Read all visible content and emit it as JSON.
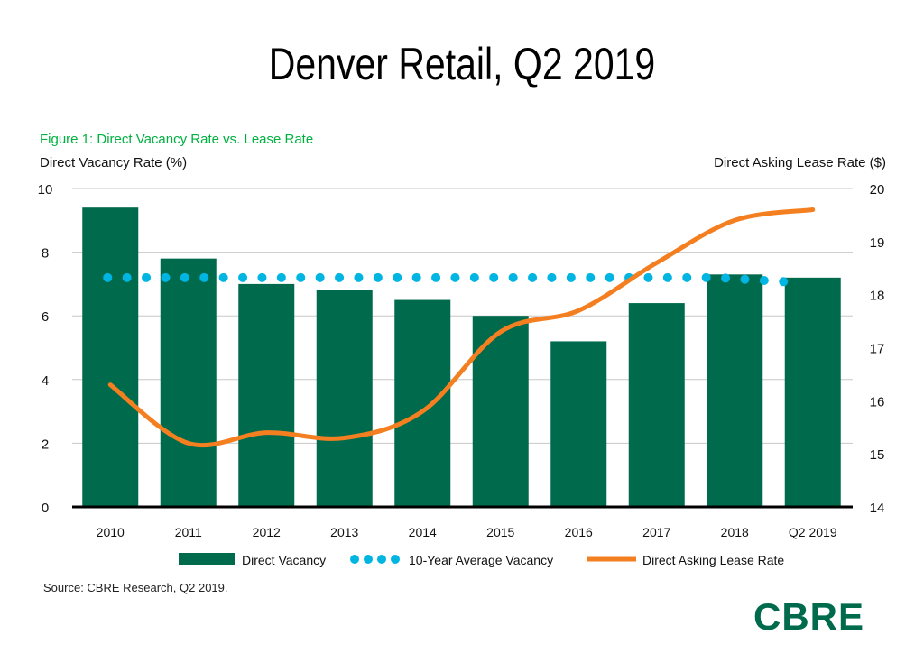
{
  "page_title": "Denver Retail, Q2 2019",
  "source": "Source: CBRE Research, Q2 2019.",
  "logo": "CBRE",
  "chart_data": {
    "type": "bar",
    "title": "Figure 1: Direct Vacancy Rate vs. Lease Rate",
    "ylabel": "Direct Vacancy Rate (%)",
    "y2label": "Direct Asking Lease Rate ($)",
    "ylim": [
      0,
      10
    ],
    "y2lim": [
      14,
      20
    ],
    "yticks": [
      0,
      2,
      4,
      6,
      8,
      10
    ],
    "y2ticks": [
      14,
      15,
      16,
      17,
      18,
      19,
      20
    ],
    "grid": true,
    "legend": "bottom",
    "categories": [
      "2010",
      "2011",
      "2012",
      "2013",
      "2014",
      "2015",
      "2016",
      "2017",
      "2018",
      "Q2 2019"
    ],
    "series": [
      {
        "name": "Direct Vacancy",
        "type": "bar",
        "axis": "left",
        "color": "#006a4d",
        "values": [
          9.4,
          7.8,
          7.0,
          6.8,
          6.5,
          6.0,
          5.2,
          6.4,
          7.3,
          7.2
        ]
      },
      {
        "name": "10-Year Average Vacancy",
        "type": "dotted-line",
        "axis": "left",
        "color": "#00b5e2",
        "values": [
          7.2,
          7.2,
          7.2,
          7.2,
          7.2,
          7.2,
          7.2,
          7.2,
          7.2,
          7.2
        ]
      },
      {
        "name": "Direct Asking Lease Rate",
        "type": "line",
        "axis": "right",
        "color": "#f47f20",
        "values": [
          16.3,
          15.2,
          15.4,
          15.3,
          15.8,
          17.3,
          17.7,
          18.6,
          19.4,
          19.6
        ]
      }
    ]
  }
}
